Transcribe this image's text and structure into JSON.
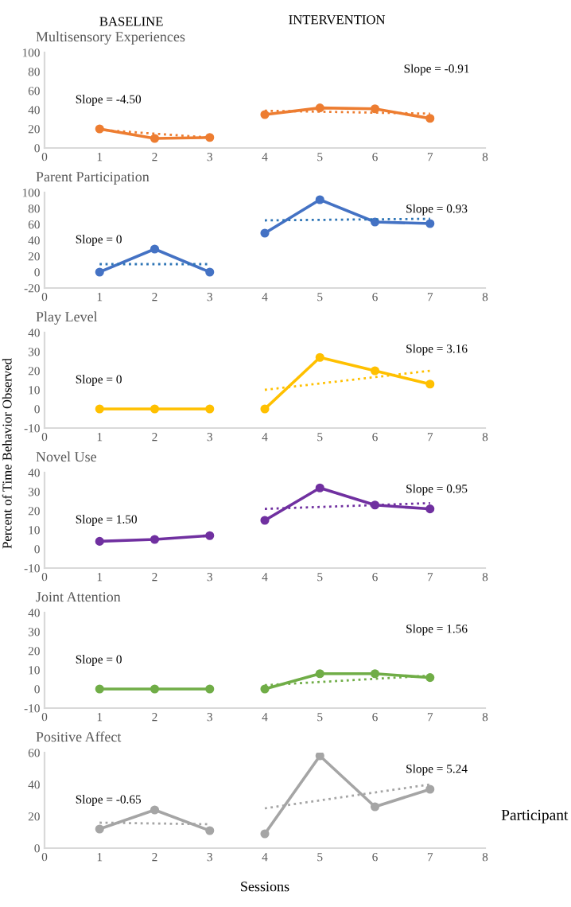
{
  "chart_data": [
    {
      "type": "line",
      "title": "Multisensory Experiences",
      "xlim": [
        0,
        8
      ],
      "xticks": [
        0,
        1,
        2,
        3,
        4,
        5,
        6,
        7,
        8
      ],
      "ylim": [
        0,
        100
      ],
      "yticks": [
        0,
        20,
        40,
        60,
        80,
        100
      ],
      "grid": false,
      "legend": false,
      "annotations": [
        "Slope = -4.50",
        "Slope = -0.91",
        "BASELINE",
        "INTERVENTION"
      ],
      "series": [
        {
          "color": "#ed7d31",
          "x": [
            1,
            2,
            3
          ],
          "values": [
            20,
            10,
            11
          ],
          "marker": "circle",
          "line_style": "solid"
        },
        {
          "color": "#ed7d31",
          "x": [
            4,
            5,
            6,
            7
          ],
          "values": [
            35,
            42,
            41,
            31
          ],
          "marker": "circle",
          "line_style": "solid"
        },
        {
          "color": "#ed7d31",
          "x": [
            1,
            3
          ],
          "values": [
            19,
            11
          ],
          "marker": "none",
          "line_style": "dotted"
        },
        {
          "color": "#ed7d31",
          "x": [
            4,
            7
          ],
          "values": [
            39,
            36
          ],
          "marker": "none",
          "line_style": "dotted"
        }
      ]
    },
    {
      "type": "line",
      "title": "Parent Participation",
      "xlim": [
        0,
        8
      ],
      "xticks": [
        0,
        1,
        2,
        3,
        4,
        5,
        6,
        7,
        8
      ],
      "ylim": [
        -20,
        100
      ],
      "yticks": [
        -20,
        0,
        20,
        40,
        60,
        80,
        100
      ],
      "grid": false,
      "legend": false,
      "annotations": [
        "Slope = 0",
        "Slope = 0.93"
      ],
      "series": [
        {
          "color": "#4472c4",
          "x": [
            1,
            2,
            3
          ],
          "values": [
            0,
            29,
            0
          ],
          "marker": "circle",
          "line_style": "solid"
        },
        {
          "color": "#4472c4",
          "x": [
            4,
            5,
            6,
            7
          ],
          "values": [
            49,
            91,
            63,
            61
          ],
          "marker": "circle",
          "line_style": "solid"
        },
        {
          "color": "#2e75b6",
          "x": [
            1,
            3
          ],
          "values": [
            10,
            10
          ],
          "marker": "none",
          "line_style": "dotted"
        },
        {
          "color": "#2e75b6",
          "x": [
            4,
            7
          ],
          "values": [
            65,
            67
          ],
          "marker": "none",
          "line_style": "dotted"
        }
      ]
    },
    {
      "type": "line",
      "title": "Play Level",
      "xlim": [
        0,
        8
      ],
      "xticks": [
        0,
        1,
        2,
        3,
        4,
        5,
        6,
        7,
        8
      ],
      "ylim": [
        -10,
        40
      ],
      "yticks": [
        -10,
        0,
        10,
        20,
        30,
        40
      ],
      "grid": false,
      "legend": false,
      "annotations": [
        "Slope = 0",
        "Slope = 3.16"
      ],
      "series": [
        {
          "color": "#ffc000",
          "x": [
            1,
            2,
            3
          ],
          "values": [
            0,
            0,
            0
          ],
          "marker": "circle",
          "line_style": "solid"
        },
        {
          "color": "#ffc000",
          "x": [
            4,
            5,
            6,
            7
          ],
          "values": [
            0,
            27,
            20,
            13
          ],
          "marker": "circle",
          "line_style": "solid"
        },
        {
          "color": "#ffc000",
          "x": [
            4,
            7
          ],
          "values": [
            10,
            20
          ],
          "marker": "none",
          "line_style": "dotted"
        }
      ]
    },
    {
      "type": "line",
      "title": "Novel Use",
      "xlim": [
        0,
        8
      ],
      "xticks": [
        0,
        1,
        2,
        3,
        4,
        5,
        6,
        7,
        8
      ],
      "ylim": [
        -10,
        40
      ],
      "yticks": [
        -10,
        0,
        10,
        20,
        30,
        40
      ],
      "grid": false,
      "legend": false,
      "ylabel": "Percent of Time Behavior Observed",
      "annotations": [
        "Slope = 1.50",
        "Slope = 0.95"
      ],
      "series": [
        {
          "color": "#7030a0",
          "x": [
            1,
            2,
            3
          ],
          "values": [
            4,
            5,
            7
          ],
          "marker": "circle",
          "line_style": "solid"
        },
        {
          "color": "#7030a0",
          "x": [
            4,
            5,
            6,
            7
          ],
          "values": [
            15,
            32,
            23,
            21
          ],
          "marker": "circle",
          "line_style": "solid"
        },
        {
          "color": "#7030a0",
          "x": [
            4,
            7
          ],
          "values": [
            21,
            24
          ],
          "marker": "none",
          "line_style": "dotted"
        }
      ]
    },
    {
      "type": "line",
      "title": "Joint Attention",
      "xlim": [
        0,
        8
      ],
      "xticks": [
        0,
        1,
        2,
        3,
        4,
        5,
        6,
        7,
        8
      ],
      "ylim": [
        -10,
        40
      ],
      "yticks": [
        -10,
        0,
        10,
        20,
        30,
        40
      ],
      "grid": false,
      "legend": false,
      "annotations": [
        "Slope = 0",
        "Slope = 1.56"
      ],
      "series": [
        {
          "color": "#70ad47",
          "x": [
            1,
            2,
            3
          ],
          "values": [
            0,
            0,
            0
          ],
          "marker": "circle",
          "line_style": "solid"
        },
        {
          "color": "#70ad47",
          "x": [
            4,
            5,
            6,
            7
          ],
          "values": [
            0,
            8,
            8,
            6
          ],
          "marker": "circle",
          "line_style": "solid"
        },
        {
          "color": "#70ad47",
          "x": [
            4,
            7
          ],
          "values": [
            2,
            7
          ],
          "marker": "none",
          "line_style": "dotted"
        }
      ]
    },
    {
      "type": "line",
      "title": "Positive Affect",
      "xlim": [
        0,
        8
      ],
      "xticks": [
        0,
        1,
        2,
        3,
        4,
        5,
        6,
        7,
        8
      ],
      "ylim": [
        0,
        60
      ],
      "yticks": [
        0,
        20,
        40,
        60
      ],
      "grid": false,
      "legend": false,
      "xlabel": "Sessions",
      "annotations": [
        "Slope = -0.65",
        "Slope = 5.24",
        "Participant"
      ],
      "series": [
        {
          "color": "#a5a5a5",
          "x": [
            1,
            2,
            3
          ],
          "values": [
            12,
            24,
            11
          ],
          "marker": "circle",
          "line_style": "solid"
        },
        {
          "color": "#a5a5a5",
          "x": [
            4,
            5,
            6,
            7
          ],
          "values": [
            9,
            58,
            26,
            37
          ],
          "marker": "circle",
          "line_style": "solid"
        },
        {
          "color": "#a5a5a5",
          "x": [
            1,
            3
          ],
          "values": [
            16,
            15
          ],
          "marker": "none",
          "line_style": "dotted"
        },
        {
          "color": "#a5a5a5",
          "x": [
            4,
            7
          ],
          "values": [
            25,
            40
          ],
          "marker": "none",
          "line_style": "dotted"
        }
      ]
    }
  ]
}
